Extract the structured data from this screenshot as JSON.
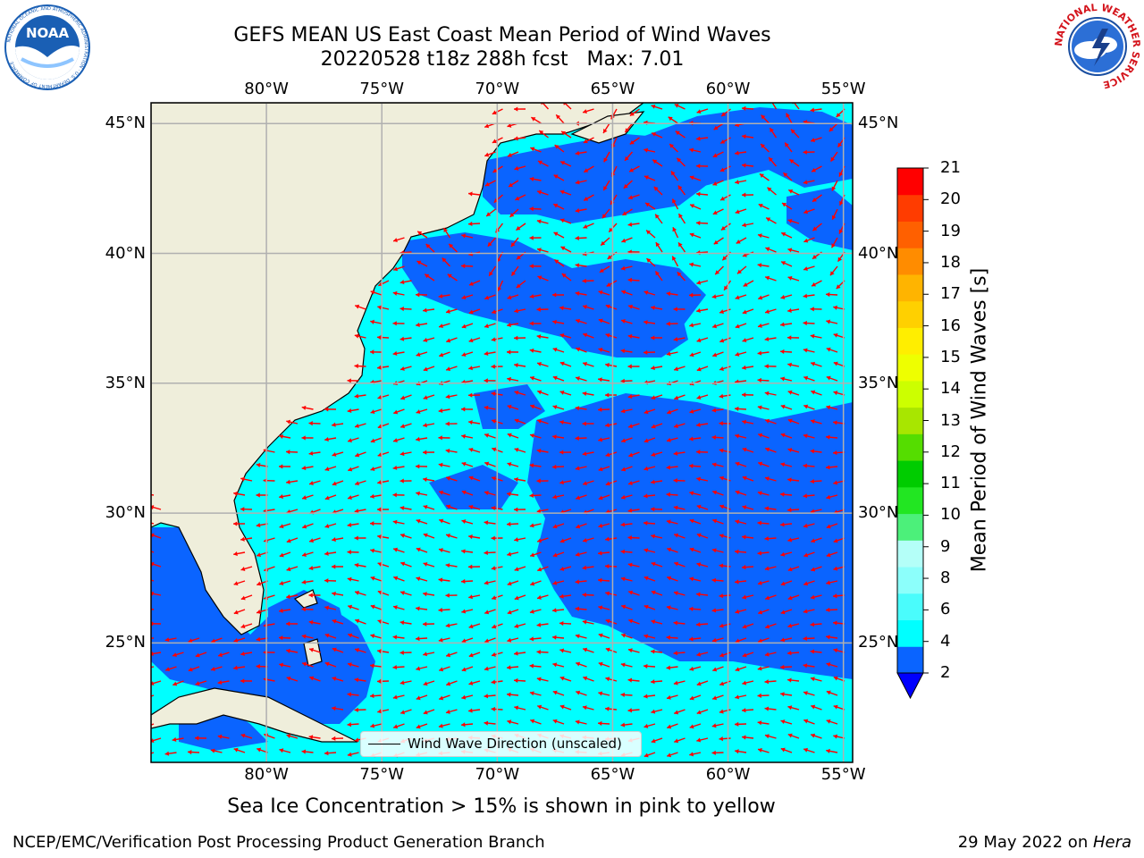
{
  "header": {
    "title_line1": "GEFS MEAN US East Coast Mean Period of Wind Waves",
    "title_line2": "20220528 t18z 288h fcst   Max: 7.01"
  },
  "logos": {
    "left": {
      "name": "noaa-logo",
      "text": "NOAA",
      "ring_text": "NATIONAL OCEANIC AND ATMOSPHERIC ADMINISTRATION · U.S. DEPARTMENT OF COMMERCE",
      "color": "#1a5fb4"
    },
    "right": {
      "name": "nws-logo",
      "ring_text": "NATIONAL WEATHER SERVICE",
      "color": "#d4141c"
    }
  },
  "map": {
    "lon_labels": [
      "80°W",
      "75°W",
      "70°W",
      "65°W",
      "60°W",
      "55°W"
    ],
    "lat_labels": [
      "45°N",
      "40°N",
      "35°N",
      "30°N",
      "25°N"
    ],
    "lon_range": [
      -85,
      -54.6
    ],
    "lat_range": [
      20.4,
      45.8
    ],
    "land_color": "#efeedb",
    "arrow_color": "#ff0000",
    "grid_color": "#b0b0b0"
  },
  "legend": {
    "label": "Wind Wave Direction (unscaled)"
  },
  "colorbar": {
    "label": "Mean Period of Wind Waves [s]",
    "ticks": [
      "2",
      "4",
      "6",
      "8",
      "9",
      "10",
      "11",
      "12",
      "13",
      "14",
      "15",
      "16",
      "17",
      "18",
      "19",
      "20",
      "21"
    ],
    "colors": [
      "#0a64ff",
      "#00ffff",
      "#4afcfc",
      "#8cfffb",
      "#b4fff8",
      "#4cf07a",
      "#22e622",
      "#00cc00",
      "#55dd00",
      "#a8e600",
      "#ccff00",
      "#eeff00",
      "#ffee00",
      "#ffd000",
      "#ffb400",
      "#ff8c00",
      "#ff6000",
      "#ff3c00",
      "#ff0000"
    ],
    "under_color": "#0000ff"
  },
  "subcaption": "Sea Ice Concentration > 15% is shown in pink to yellow",
  "footer": {
    "left": "NCEP/EMC/Verification Post Processing Product Generation Branch",
    "right_date": "29 May 2022 on ",
    "right_host": "Hera"
  }
}
